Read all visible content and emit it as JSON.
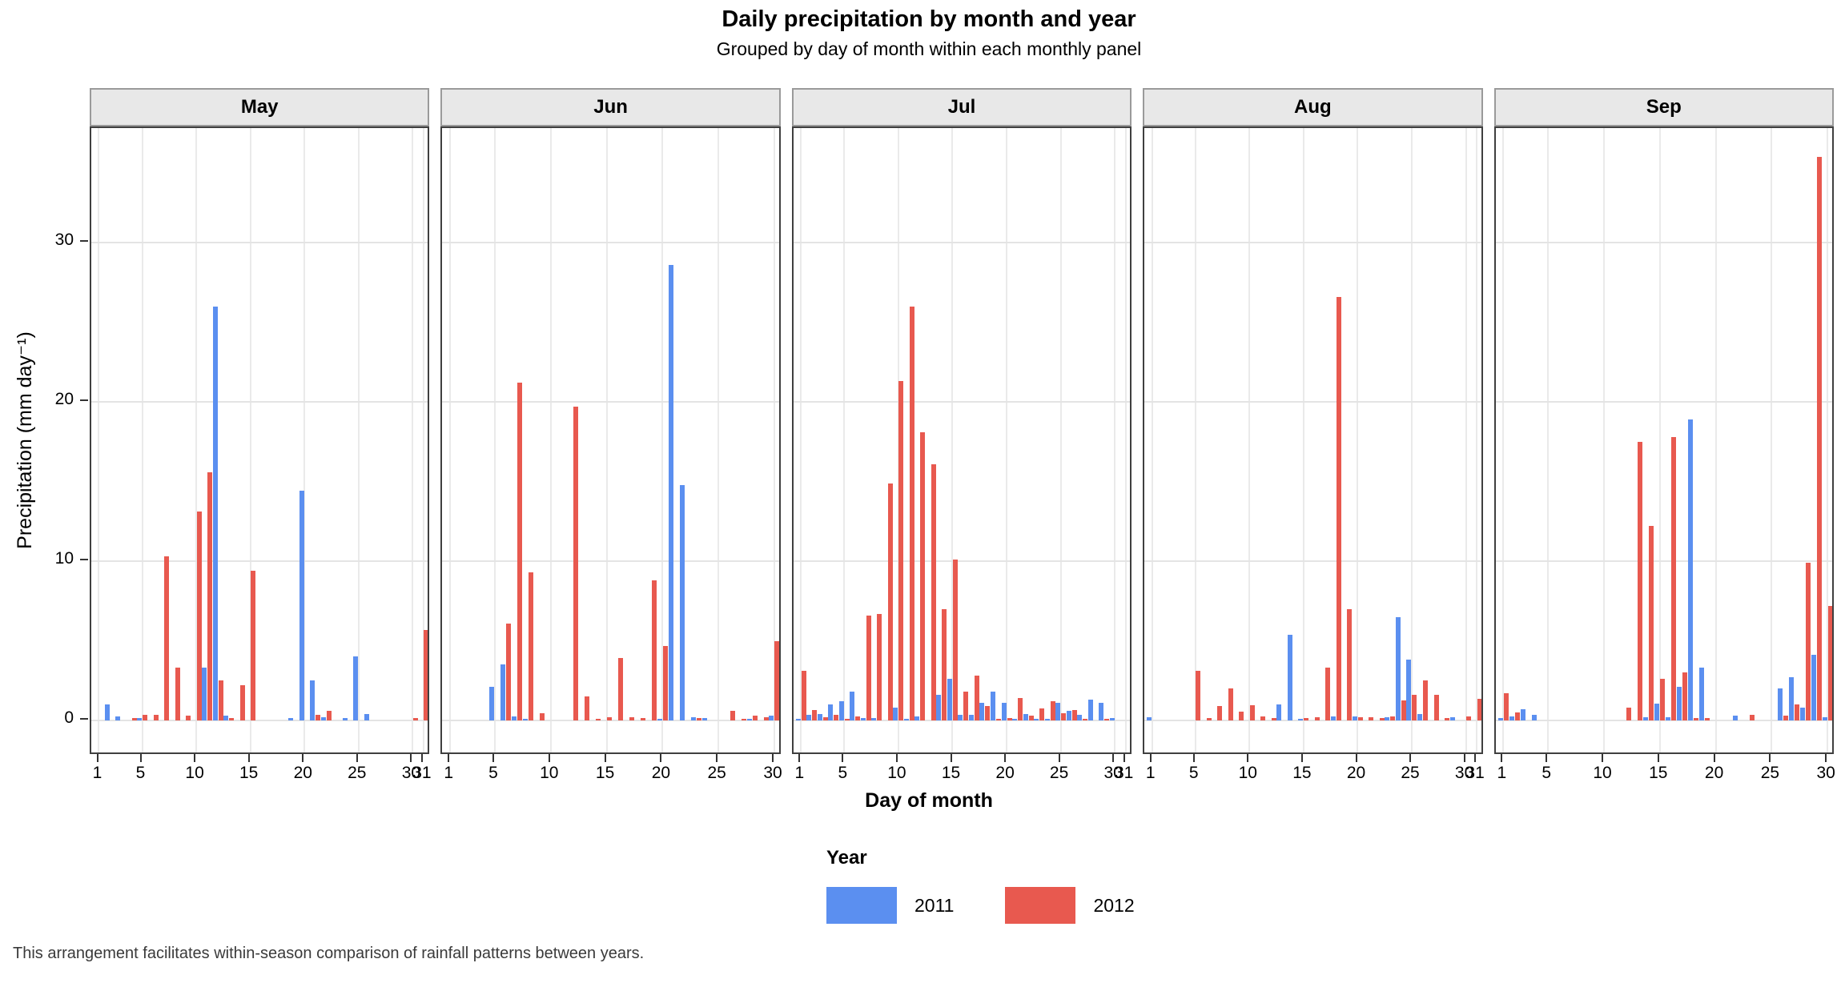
{
  "chart_data": {
    "type": "bar",
    "title": "Daily precipitation by month and year",
    "subtitle": "Grouped by day of month within each monthly panel",
    "xlabel": "Day of month",
    "ylabel": "Precipitation (mm day⁻¹)",
    "caption": "This arrangement facilitates within-season comparison of rainfall patterns between years.",
    "ylim": [
      0,
      39.4
    ],
    "yticks": [
      0,
      10,
      20,
      30
    ],
    "grid": true,
    "legend_position": "bottom",
    "legend": {
      "title": "Year",
      "entries": [
        {
          "label": "2011",
          "color": "#5b8ff0"
        },
        {
          "label": "2012",
          "color": "#e8594f"
        }
      ]
    },
    "panels": [
      {
        "month": "May",
        "days": 31,
        "xticks": [
          1,
          5,
          10,
          15,
          20,
          25,
          30,
          31
        ],
        "series": [
          {
            "name": "2011",
            "values": [
              0,
              1.0,
              0.25,
              0,
              0.15,
              0,
              0,
              0,
              0,
              0,
              3.3,
              26.0,
              0.3,
              0,
              0,
              0,
              0,
              0,
              0.15,
              14.4,
              2.5,
              0.2,
              0,
              0.15,
              4.0,
              0.4,
              0,
              0,
              0,
              0,
              0
            ]
          },
          {
            "name": "2012",
            "values": [
              0,
              0,
              0,
              0.15,
              0.35,
              0.35,
              10.3,
              3.3,
              0.3,
              13.1,
              15.6,
              2.5,
              0.15,
              2.2,
              9.4,
              0,
              0,
              0,
              0,
              0,
              0.35,
              0.6,
              0,
              0,
              0,
              0,
              0,
              0,
              0,
              0.15,
              5.7
            ]
          }
        ]
      },
      {
        "month": "Jun",
        "days": 30,
        "xticks": [
          1,
          5,
          10,
          15,
          20,
          25,
          30
        ],
        "series": [
          {
            "name": "2011",
            "values": [
              0,
              0,
              0,
              0,
              2.1,
              3.5,
              0.25,
              0.1,
              0,
              0,
              0,
              0,
              0,
              0,
              0,
              0,
              0,
              0,
              0,
              0.1,
              28.6,
              14.8,
              0.2,
              0.15,
              0,
              0,
              0,
              0.1,
              0,
              0.3
            ]
          },
          {
            "name": "2012",
            "values": [
              0,
              0,
              0,
              0,
              0,
              6.1,
              21.2,
              9.3,
              0.45,
              0,
              0,
              19.7,
              1.5,
              0.1,
              0.2,
              3.9,
              0.2,
              0.15,
              8.8,
              4.7,
              0,
              0,
              0.15,
              0,
              0,
              0.6,
              0.1,
              0.3,
              0.2,
              5.0
            ]
          }
        ]
      },
      {
        "month": "Jul",
        "days": 31,
        "xticks": [
          1,
          5,
          10,
          15,
          20,
          25,
          30,
          31
        ],
        "series": [
          {
            "name": "2011",
            "values": [
              0.1,
              0.35,
              0.4,
              1.0,
              1.2,
              1.8,
              0.15,
              0.15,
              0,
              0.8,
              0.1,
              0.25,
              0,
              1.6,
              2.6,
              0.35,
              0.35,
              1.1,
              1.8,
              1.1,
              0.1,
              0.4,
              0.1,
              0.1,
              1.1,
              0.6,
              0.35,
              1.3,
              1.1,
              0.15,
              0
            ]
          },
          {
            "name": "2012",
            "values": [
              3.1,
              0.65,
              0.2,
              0.35,
              0.1,
              0.25,
              6.6,
              6.7,
              14.9,
              21.3,
              26.0,
              18.1,
              16.1,
              7.0,
              10.1,
              1.8,
              2.8,
              0.9,
              0.1,
              0.15,
              1.4,
              0.3,
              0.75,
              1.2,
              0.45,
              0.65,
              0.1,
              0,
              0.1,
              0,
              0
            ]
          }
        ]
      },
      {
        "month": "Aug",
        "days": 31,
        "xticks": [
          1,
          5,
          10,
          15,
          20,
          25,
          30,
          31
        ],
        "series": [
          {
            "name": "2011",
            "values": [
              0.2,
              0,
              0,
              0,
              0,
              0,
              0,
              0,
              0,
              0,
              0,
              0,
              1.0,
              5.4,
              0.1,
              0,
              0,
              0.25,
              0,
              0.25,
              0,
              0,
              0.2,
              6.5,
              3.8,
              0.4,
              0,
              0,
              0.2,
              0,
              0
            ]
          },
          {
            "name": "2012",
            "values": [
              0,
              0,
              0,
              0,
              3.1,
              0.15,
              0.9,
              2.0,
              0.55,
              0.95,
              0.25,
              0.15,
              0,
              0,
              0.15,
              0.2,
              3.3,
              26.6,
              7.0,
              0.2,
              0.2,
              0.17,
              0.25,
              1.25,
              1.6,
              2.5,
              1.6,
              0.17,
              0,
              0.25,
              1.35
            ]
          }
        ]
      },
      {
        "month": "Sep",
        "days": 30,
        "xticks": [
          1,
          5,
          10,
          15,
          20,
          25,
          30
        ],
        "series": [
          {
            "name": "2011",
            "values": [
              0.15,
              0.25,
              0.7,
              0.35,
              0,
              0,
              0,
              0,
              0,
              0,
              0,
              0,
              0,
              0.2,
              1.05,
              0.2,
              2.1,
              18.9,
              3.3,
              0,
              0,
              0.3,
              0,
              0,
              0,
              2.0,
              2.7,
              0.8,
              4.1,
              0.2
            ]
          },
          {
            "name": "2012",
            "values": [
              1.7,
              0.5,
              0,
              0,
              0,
              0,
              0,
              0,
              0,
              0,
              0,
              0.8,
              17.5,
              12.2,
              2.6,
              17.8,
              3.0,
              0.15,
              0.15,
              0,
              0,
              0,
              0.35,
              0,
              0,
              0.3,
              1.0,
              9.9,
              35.4,
              7.2
            ]
          }
        ]
      }
    ]
  }
}
